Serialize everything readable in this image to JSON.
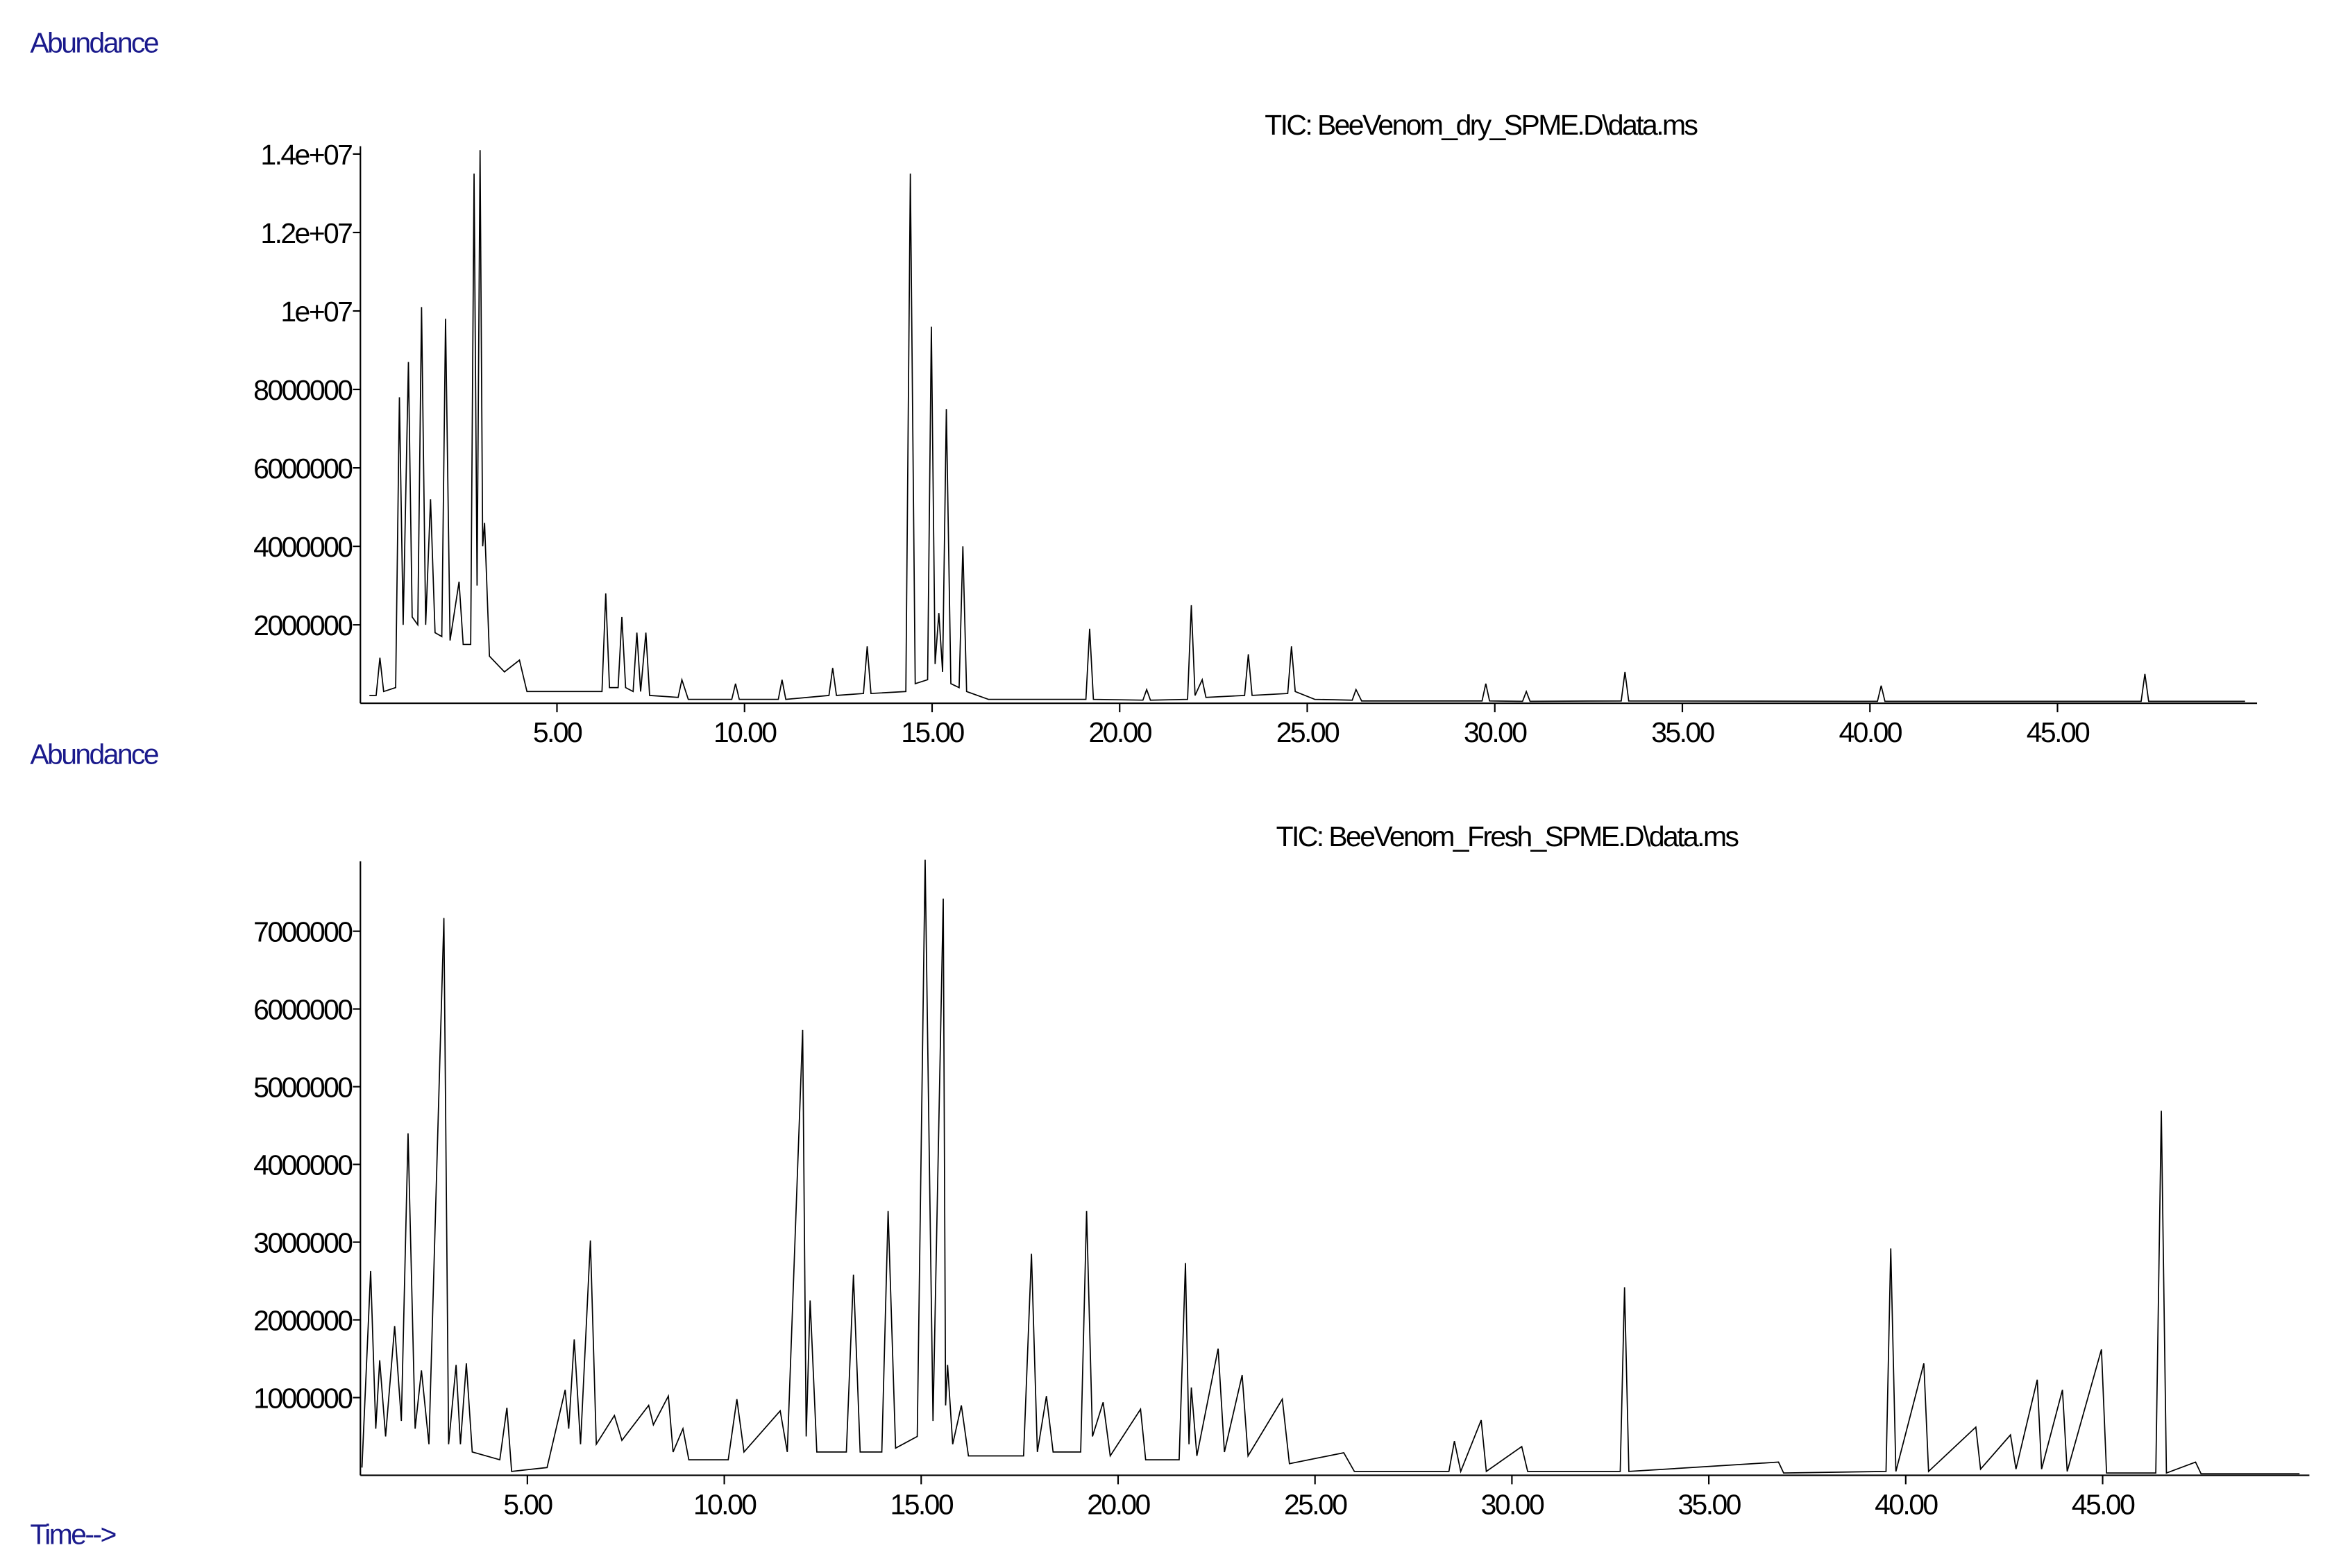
{
  "chart_data": [
    {
      "type": "line",
      "title": "TIC: BeeVenom_dry_SPME.D\\data.ms",
      "ylabel": "Abundance",
      "color": "#000000",
      "grid": false,
      "xlim": [
        -0.24,
        50.32
      ],
      "ylim": [
        0,
        14200000
      ],
      "xticks": [
        {
          "value": 5,
          "label": "5.00"
        },
        {
          "value": 10,
          "label": "10.00"
        },
        {
          "value": 15,
          "label": "15.00"
        },
        {
          "value": 20,
          "label": "20.00"
        },
        {
          "value": 25,
          "label": "25.00"
        },
        {
          "value": 30,
          "label": "30.00"
        },
        {
          "value": 35,
          "label": "35.00"
        },
        {
          "value": 40,
          "label": "40.00"
        },
        {
          "value": 45,
          "label": "45.00"
        }
      ],
      "yticks": [
        2000000,
        4000000,
        6000000,
        8000000,
        {
          "value": 10000000,
          "label": "1e+07"
        },
        {
          "value": 12000000,
          "label": "1.2e+07"
        },
        {
          "value": 14000000,
          "label": "1.4e+07"
        }
      ],
      "x": [
        0,
        0.18,
        0.28,
        0.38,
        0.7,
        0.8,
        0.9,
        1.04,
        1.14,
        1.29,
        1.39,
        1.5,
        1.63,
        1.75,
        1.93,
        2.03,
        2.15,
        2.39,
        2.5,
        2.7,
        2.79,
        2.87,
        2.95,
        3.02,
        3.07,
        3.2,
        3.6,
        4.0,
        4.2,
        6.2,
        6.3,
        6.4,
        6.63,
        6.73,
        6.83,
        7.03,
        7.13,
        7.23,
        7.37,
        7.47,
        8.23,
        8.33,
        8.5,
        9.66,
        9.76,
        9.86,
        10.9,
        11.0,
        11.1,
        12.25,
        12.35,
        12.45,
        13.17,
        13.27,
        13.37,
        14.3,
        14.42,
        14.55,
        14.88,
        14.98,
        15.08,
        15.18,
        15.28,
        15.38,
        15.5,
        15.72,
        15.82,
        15.92,
        16.5,
        19.1,
        19.2,
        19.3,
        20.62,
        20.72,
        20.82,
        21.81,
        21.91,
        22.01,
        22.2,
        22.3,
        23.33,
        23.43,
        23.53,
        24.48,
        24.58,
        24.68,
        25.2,
        26.2,
        26.3,
        26.45,
        29.66,
        29.76,
        29.86,
        30.74,
        30.84,
        30.94,
        33.37,
        33.47,
        33.57,
        40.2,
        40.3,
        40.4,
        47.23,
        47.33,
        47.43,
        50.0
      ],
      "series": [
        {
          "values": [
            200000,
            200000,
            1160000,
            300000,
            400000,
            7800000,
            2000000,
            8700000,
            2200000,
            2000000,
            10100000,
            2000000,
            5200000,
            1800000,
            1700000,
            9800000,
            1600000,
            3100000,
            1500000,
            1500000,
            13500000,
            3000000,
            14100000,
            4000000,
            4600000,
            1200000,
            800000,
            1100000,
            300000,
            300000,
            2800000,
            400000,
            400000,
            2200000,
            400000,
            300000,
            1800000,
            300000,
            1800000,
            200000,
            150000,
            600000,
            100000,
            100000,
            500000,
            100000,
            100000,
            600000,
            100000,
            200000,
            900000,
            200000,
            250000,
            1450000,
            250000,
            300000,
            13500000,
            500000,
            600000,
            9600000,
            1000000,
            2300000,
            800000,
            7500000,
            500000,
            400000,
            4000000,
            300000,
            100000,
            100000,
            1900000,
            100000,
            80000,
            350000,
            80000,
            100000,
            2500000,
            200000,
            600000,
            150000,
            200000,
            1250000,
            200000,
            250000,
            1450000,
            300000,
            100000,
            80000,
            350000,
            60000,
            60000,
            500000,
            60000,
            50000,
            300000,
            50000,
            60000,
            800000,
            60000,
            50000,
            450000,
            50000,
            50000,
            750000,
            50000,
            50000
          ]
        }
      ]
    },
    {
      "type": "line",
      "title": "TIC: BeeVenom_Fresh_SPME.D\\data.ms",
      "ylabel": "Abundance",
      "xlabel": "Time-->",
      "color": "#000000",
      "grid": false,
      "xlim": [
        0.76,
        50.25
      ],
      "ylim": [
        0,
        7900000
      ],
      "xticks": [
        {
          "value": 5,
          "label": "5.00"
        },
        {
          "value": 10,
          "label": "10.00"
        },
        {
          "value": 15,
          "label": "15.00"
        },
        {
          "value": 20,
          "label": "20.00"
        },
        {
          "value": 25,
          "label": "25.00"
        },
        {
          "value": 30,
          "label": "30.00"
        },
        {
          "value": 35,
          "label": "35.00"
        },
        {
          "value": 40,
          "label": "40.00"
        },
        {
          "value": 45,
          "label": "45.00"
        }
      ],
      "yticks": [
        1000000,
        2000000,
        3000000,
        4000000,
        5000000,
        6000000,
        7000000
      ],
      "x": [
        0.8,
        1.02,
        1.15,
        1.25,
        1.4,
        1.63,
        1.8,
        1.97,
        2.15,
        2.31,
        2.5,
        2.88,
        3.0,
        3.19,
        3.3,
        3.45,
        3.6,
        4.3,
        4.48,
        4.6,
        5.5,
        5.96,
        6.05,
        6.19,
        6.35,
        6.6,
        6.75,
        7.21,
        7.4,
        8.08,
        8.2,
        8.58,
        8.7,
        8.95,
        9.1,
        10.1,
        10.32,
        10.5,
        11.42,
        11.6,
        11.99,
        12.08,
        12.18,
        12.35,
        13.1,
        13.28,
        13.45,
        14.0,
        14.16,
        14.35,
        14.9,
        15.1,
        15.3,
        15.56,
        15.62,
        15.67,
        15.8,
        16.02,
        16.2,
        17.6,
        17.8,
        17.95,
        18.18,
        18.35,
        19.05,
        19.2,
        19.35,
        19.62,
        19.8,
        20.57,
        20.7,
        21.55,
        21.71,
        21.8,
        21.86,
        22.0,
        22.54,
        22.7,
        23.15,
        23.3,
        24.17,
        24.35,
        25.73,
        26.0,
        28.4,
        28.54,
        28.7,
        29.22,
        29.35,
        30.25,
        30.4,
        32.75,
        32.86,
        32.97,
        36.77,
        36.9,
        39.5,
        39.62,
        39.75,
        40.46,
        40.58,
        41.78,
        41.9,
        42.66,
        42.8,
        43.34,
        43.45,
        43.98,
        44.1,
        44.97,
        45.1,
        46.35,
        46.49,
        46.62,
        47.36,
        47.5,
        50.0
      ],
      "series": [
        {
          "values": [
            100000,
            2630000,
            600000,
            1480000,
            500000,
            1920000,
            700000,
            4400000,
            600000,
            1350000,
            400000,
            7170000,
            400000,
            1420000,
            400000,
            1440000,
            300000,
            200000,
            870000,
            50000,
            100000,
            1100000,
            600000,
            1750000,
            400000,
            3020000,
            400000,
            770000,
            450000,
            900000,
            650000,
            1020000,
            300000,
            600000,
            200000,
            200000,
            980000,
            300000,
            830000,
            300000,
            5730000,
            500000,
            2250000,
            300000,
            300000,
            2580000,
            300000,
            300000,
            3400000,
            350000,
            500000,
            7920000,
            700000,
            7420000,
            900000,
            1420000,
            400000,
            900000,
            250000,
            250000,
            2850000,
            300000,
            1020000,
            300000,
            300000,
            3400000,
            500000,
            940000,
            250000,
            850000,
            200000,
            200000,
            2730000,
            400000,
            1130000,
            250000,
            1630000,
            300000,
            1290000,
            250000,
            980000,
            150000,
            290000,
            50000,
            50000,
            440000,
            50000,
            710000,
            50000,
            370000,
            50000,
            50000,
            2420000,
            50000,
            170000,
            30000,
            50000,
            2920000,
            50000,
            1440000,
            50000,
            620000,
            80000,
            520000,
            80000,
            1230000,
            80000,
            1100000,
            50000,
            1620000,
            30000,
            30000,
            4690000,
            30000,
            170000,
            20000,
            20000
          ]
        }
      ]
    }
  ]
}
